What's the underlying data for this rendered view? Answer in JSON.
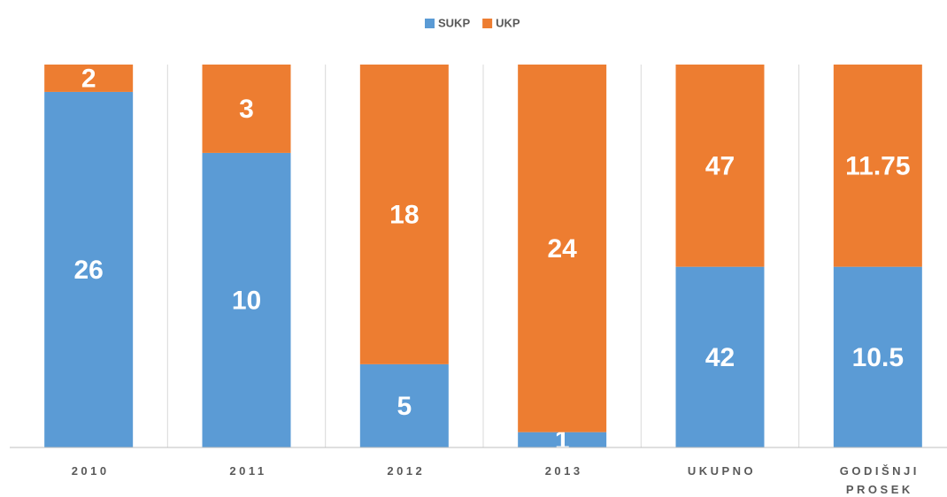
{
  "chart_data": {
    "type": "bar",
    "stacking": "percent",
    "categories": [
      "2010",
      "2011",
      "2012",
      "2013",
      "UKUPNO",
      "GODIŠNJI PROSEK"
    ],
    "series": [
      {
        "name": "SUKP",
        "color": "#5b9bd5",
        "values": [
          26,
          10,
          5,
          1,
          42,
          10.5
        ]
      },
      {
        "name": "UKP",
        "color": "#ed7d31",
        "values": [
          2,
          3,
          18,
          24,
          47,
          11.75
        ]
      }
    ],
    "legend": "top"
  }
}
